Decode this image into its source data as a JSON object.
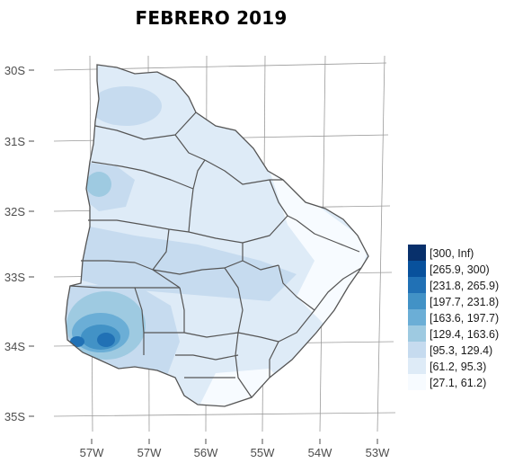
{
  "title": "FEBRERO 2019",
  "axes": {
    "lat_labels": [
      "30S",
      "31S",
      "32S",
      "33S",
      "34S",
      "35S"
    ],
    "lon_labels": [
      "57W",
      "57W",
      "56W",
      "55W",
      "54W",
      "53W"
    ]
  },
  "legend": {
    "items": [
      {
        "label": "[300, Inf)",
        "color": "#08306b"
      },
      {
        "label": "[265.9, 300)",
        "color": "#08519c"
      },
      {
        "label": "[231.8, 265.9)",
        "color": "#2171b5"
      },
      {
        "label": "[197.7, 231.8)",
        "color": "#4292c6"
      },
      {
        "label": "[163.6, 197.7)",
        "color": "#6baed6"
      },
      {
        "label": "[129.4, 163.6)",
        "color": "#9ecae1"
      },
      {
        "label": "[95.3, 129.4)",
        "color": "#c6dbef"
      },
      {
        "label": "[61.2, 95.3)",
        "color": "#deebf7"
      },
      {
        "label": "[27.1, 61.2)",
        "color": "#f7fbff"
      }
    ]
  }
}
